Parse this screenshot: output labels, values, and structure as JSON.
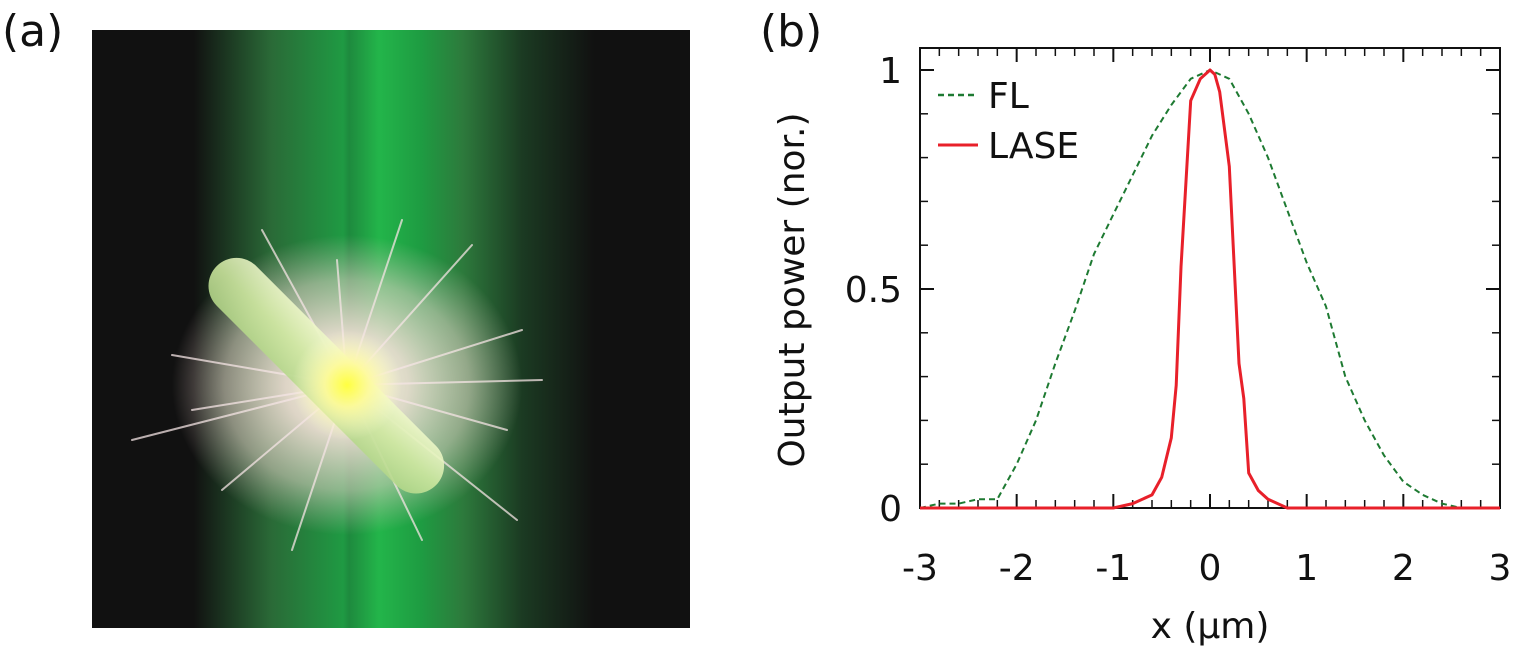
{
  "panel_labels": {
    "a": "(a)",
    "b": "(b)"
  },
  "micrograph": {
    "icon": "nanowire-laser-emission-image",
    "colors": {
      "background": "#111111",
      "pump_beam": "#22b34a",
      "nanowire": "#d9f2a8",
      "emission_core": "#ffff66",
      "glow": "#f1dcd4"
    }
  },
  "chart_data": {
    "type": "line",
    "title": "",
    "xlabel": "x (µm)",
    "ylabel": "Output power (nor.)",
    "xlim": [
      -3,
      3
    ],
    "ylim": [
      0,
      1
    ],
    "xticks": [
      "-3",
      "-2",
      "-1",
      "0",
      "1",
      "2",
      "3"
    ],
    "yticks": [
      "0",
      "0.5",
      "1"
    ],
    "grid": false,
    "legend": "top-left",
    "series": [
      {
        "name": "FL",
        "style": "dashed",
        "color": "#1e7a32",
        "x": [
          -3.0,
          -2.8,
          -2.6,
          -2.4,
          -2.2,
          -2.0,
          -1.8,
          -1.6,
          -1.4,
          -1.2,
          -1.0,
          -0.8,
          -0.6,
          -0.4,
          -0.2,
          0.0,
          0.2,
          0.4,
          0.6,
          0.8,
          1.0,
          1.2,
          1.4,
          1.6,
          1.8,
          2.0,
          2.2,
          2.4,
          2.6,
          2.8,
          3.0
        ],
        "y": [
          0.0,
          0.01,
          0.01,
          0.02,
          0.02,
          0.1,
          0.2,
          0.33,
          0.45,
          0.58,
          0.67,
          0.76,
          0.85,
          0.92,
          0.98,
          1.0,
          0.98,
          0.9,
          0.8,
          0.68,
          0.56,
          0.46,
          0.3,
          0.2,
          0.12,
          0.06,
          0.03,
          0.01,
          0.0,
          0.0,
          0.0
        ]
      },
      {
        "name": "LASE",
        "style": "solid",
        "color": "#e8202a",
        "x": [
          -3.0,
          -1.0,
          -0.8,
          -0.6,
          -0.5,
          -0.4,
          -0.35,
          -0.3,
          -0.2,
          -0.1,
          0.0,
          0.05,
          0.1,
          0.2,
          0.3,
          0.35,
          0.4,
          0.5,
          0.6,
          0.8,
          1.0,
          3.0
        ],
        "y": [
          0.0,
          0.0,
          0.01,
          0.03,
          0.07,
          0.16,
          0.28,
          0.55,
          0.93,
          0.98,
          1.0,
          0.99,
          0.95,
          0.78,
          0.33,
          0.25,
          0.08,
          0.04,
          0.02,
          0.0,
          0.0,
          0.0
        ]
      }
    ]
  }
}
